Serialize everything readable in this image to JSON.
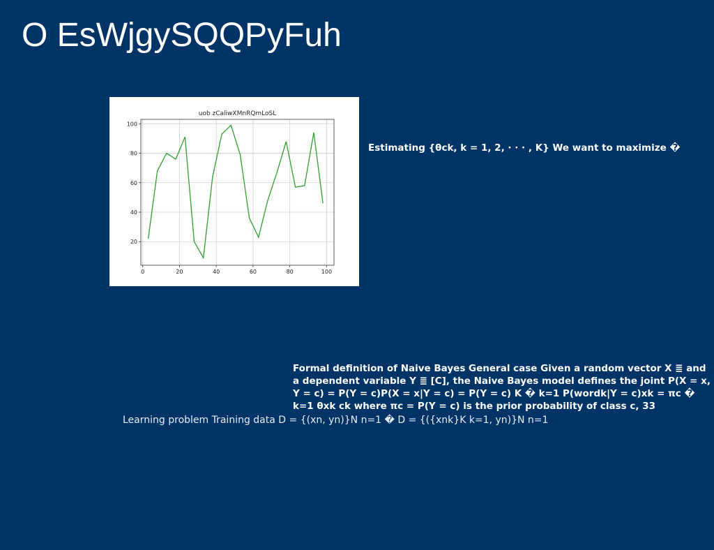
{
  "slide": {
    "title": "O EsWjgySQQPyFuh",
    "estimating_text": "Estimating {θck, k = 1, 2, · · · , K} We want to maximize �",
    "formal_text": "Formal definition of Naive Bayes General case Given a random vector X ≣ and a dependent variable Y ≣ [C], the Naive Bayes model defines the joint P(X = x, Y = c) = P(Y = c)P(X = x|Y = c) = P(Y = c) K � k=1 P(wordk|Y = c)xk = πc � k=1 θxk ck where πc = P(Y = c) is the prior probability of class c, 33",
    "learning_text": "Learning problem Training data D = {(xn, yn)}N n=1 � D = {({xnk}K k=1, yn)}N n=1"
  },
  "colors": {
    "background": "#003366",
    "line": "#2ca02c"
  },
  "chart_data": {
    "type": "line",
    "title": "uob zCaliwXMnRQmLoSL",
    "xlabel": "",
    "ylabel": "",
    "xlim": [
      -1,
      104
    ],
    "ylim": [
      4,
      103
    ],
    "grid": true,
    "x_ticks": [
      0,
      20,
      40,
      60,
      80,
      100
    ],
    "y_ticks": [
      20,
      40,
      60,
      80,
      100
    ],
    "series": [
      {
        "x": [
          3,
          8,
          13,
          18,
          23,
          28,
          33,
          38,
          43,
          48,
          53,
          58,
          63,
          68,
          73,
          78,
          83,
          88,
          93,
          98
        ],
        "y": [
          22,
          68,
          80,
          76,
          91,
          20,
          9,
          64,
          93,
          99,
          79,
          36,
          23,
          48,
          67,
          88,
          57,
          58,
          94,
          46
        ]
      }
    ]
  }
}
